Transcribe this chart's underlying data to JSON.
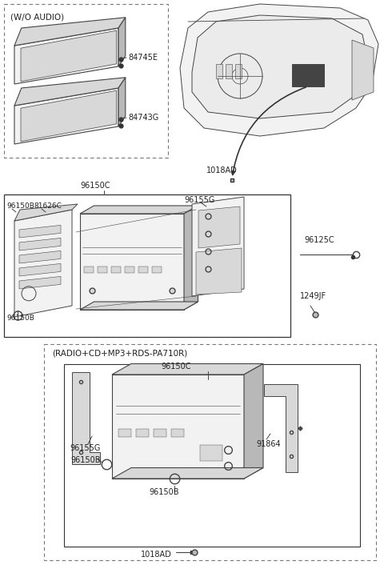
{
  "bg_color": "#ffffff",
  "lc": "#444444",
  "tc": "#222222",
  "figw": 4.8,
  "figh": 7.11,
  "dpi": 100,
  "wo_audio_label": "(W/O AUDIO)",
  "radio_cd_label": "(RADIO+CD+MP3+RDS-PA710R)",
  "parts": {
    "84745E": "84745E",
    "84743G": "84743G",
    "96150C_top": "96150C",
    "96150B_tl": "96150B",
    "81626C": "81626C",
    "96155G_mid": "96155G",
    "96125C": "96125C",
    "1249JF": "1249JF",
    "96150B_bl": "96150B",
    "1018AD_top": "1018AD",
    "96150C_bot": "96150C",
    "96155G_bot": "96155G",
    "96150B_bot1": "96150B",
    "96150B_bot2": "96150B",
    "91864": "91864",
    "1018AD_bot": "1018AD"
  }
}
